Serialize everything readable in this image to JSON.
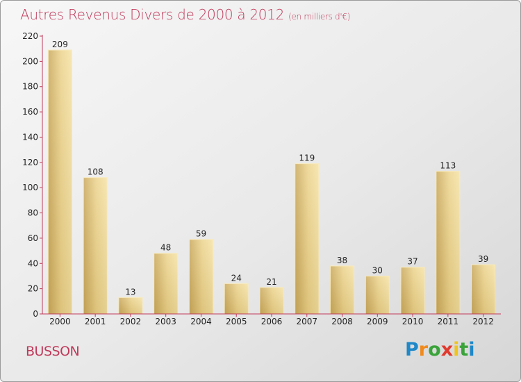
{
  "title": "Autres Revenus Divers de 2000 à 2012",
  "subtitle": "(en milliers d'€)",
  "place": "BUSSON",
  "logo": {
    "text": "Proxiti",
    "letters": [
      "P",
      "r",
      "o",
      "x",
      "i",
      "t",
      "i"
    ],
    "colors": [
      "#1e88c8",
      "#f08a1c",
      "#3aa33a",
      "#e0392d",
      "#f0c419",
      "#3aa33a",
      "#1e88c8"
    ]
  },
  "chart_data": {
    "type": "bar",
    "title": "Autres Revenus Divers de 2000 à 2012",
    "subtitle": "(en milliers d'€)",
    "categories": [
      "2000",
      "2001",
      "2002",
      "2003",
      "2004",
      "2005",
      "2006",
      "2007",
      "2008",
      "2009",
      "2010",
      "2011",
      "2012"
    ],
    "values": [
      209,
      108,
      13,
      48,
      59,
      24,
      21,
      119,
      38,
      30,
      37,
      113,
      39
    ],
    "ylim": [
      0,
      220
    ],
    "yticks": [
      0,
      20,
      40,
      60,
      80,
      100,
      120,
      140,
      160,
      180,
      200,
      220
    ],
    "grid": false,
    "bar_color": "#e9cc7e",
    "axis_color": "#c0395a"
  }
}
